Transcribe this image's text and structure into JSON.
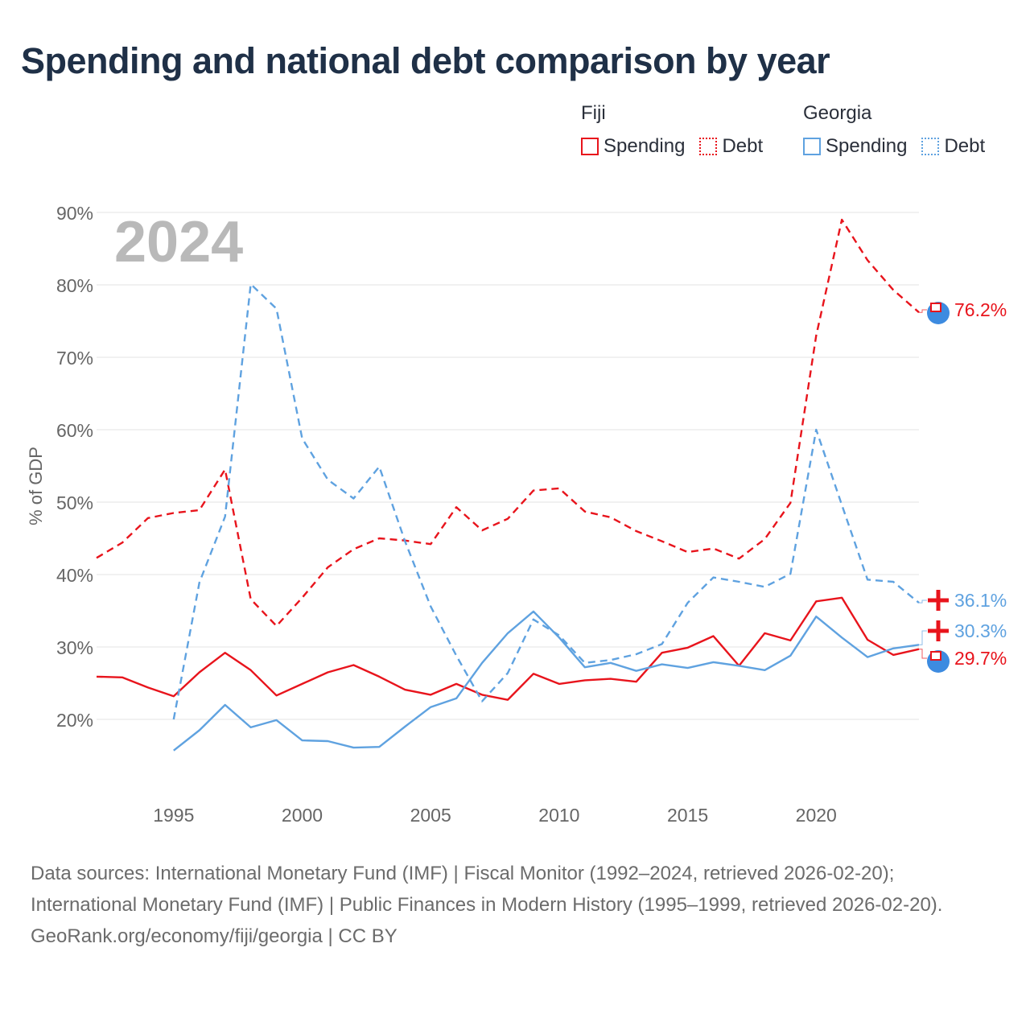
{
  "title": "Spending and national debt comparison by year",
  "legend": {
    "groups": [
      {
        "name": "Fiji",
        "items": [
          {
            "label": "Spending"
          },
          {
            "label": "Debt"
          }
        ]
      },
      {
        "name": "Georgia",
        "items": [
          {
            "label": "Spending"
          },
          {
            "label": "Debt"
          }
        ]
      }
    ]
  },
  "colors": {
    "fiji": "#e8141c",
    "georgia": "#5fa2e0",
    "year_watermark": "#b9b9b9"
  },
  "chart_data": {
    "type": "line",
    "title": "Spending and national debt comparison by year",
    "year_label": "2024",
    "ylabel": "% of GDP",
    "xlabel": "",
    "xlim": [
      1992,
      2024
    ],
    "ylim": [
      10,
      90
    ],
    "yticks": [
      20,
      30,
      40,
      50,
      60,
      70,
      80,
      90
    ],
    "ytick_labels": [
      "20%",
      "30%",
      "40%",
      "50%",
      "60%",
      "70%",
      "80%",
      "90%"
    ],
    "xticks": [
      1995,
      2000,
      2005,
      2010,
      2015,
      2020
    ],
    "xtick_labels": [
      "1995",
      "2000",
      "2005",
      "2010",
      "2015",
      "2020"
    ],
    "series": [
      {
        "name": "Fiji Spending",
        "country": "Fiji",
        "metric": "Spending",
        "style": "solid",
        "color": "#e8141c",
        "end_label": "29.7%",
        "x": [
          1992,
          1993,
          1994,
          1995,
          1996,
          1997,
          1998,
          1999,
          2000,
          2001,
          2002,
          2003,
          2004,
          2005,
          2006,
          2007,
          2008,
          2009,
          2010,
          2011,
          2012,
          2013,
          2014,
          2015,
          2016,
          2017,
          2018,
          2019,
          2020,
          2021,
          2022,
          2023,
          2024
        ],
        "values": [
          25.9,
          25.8,
          24.4,
          23.2,
          26.5,
          29.2,
          26.8,
          23.3,
          24.9,
          26.5,
          27.5,
          25.9,
          24.1,
          23.4,
          24.9,
          23.4,
          22.7,
          26.3,
          24.9,
          25.4,
          25.6,
          25.2,
          29.2,
          29.9,
          31.5,
          27.4,
          31.9,
          30.9,
          36.3,
          36.8,
          31.0,
          28.9,
          29.7
        ]
      },
      {
        "name": "Fiji Debt",
        "country": "Fiji",
        "metric": "Debt",
        "style": "dashed",
        "color": "#e8141c",
        "end_label": "76.2%",
        "x": [
          1992,
          1993,
          1994,
          1995,
          1996,
          1997,
          1998,
          1999,
          2000,
          2001,
          2002,
          2003,
          2004,
          2005,
          2006,
          2007,
          2008,
          2009,
          2010,
          2011,
          2012,
          2013,
          2014,
          2015,
          2016,
          2017,
          2018,
          2019,
          2020,
          2021,
          2022,
          2023,
          2024
        ],
        "values": [
          42.3,
          44.4,
          47.8,
          48.5,
          48.9,
          54.5,
          36.6,
          32.9,
          36.8,
          41.0,
          43.5,
          45.0,
          44.7,
          44.2,
          49.3,
          46.1,
          47.7,
          51.6,
          51.9,
          48.7,
          47.9,
          46.0,
          44.6,
          43.1,
          43.6,
          42.2,
          44.9,
          49.9,
          73.0,
          89.0,
          83.4,
          79.3,
          76.2
        ]
      },
      {
        "name": "Georgia Spending",
        "country": "Georgia",
        "metric": "Spending",
        "style": "solid",
        "color": "#5fa2e0",
        "end_label": "30.3%",
        "x": [
          1995,
          1996,
          1997,
          1998,
          1999,
          2000,
          2001,
          2002,
          2003,
          2004,
          2005,
          2006,
          2007,
          2008,
          2009,
          2010,
          2011,
          2012,
          2013,
          2014,
          2015,
          2016,
          2017,
          2018,
          2019,
          2020,
          2021,
          2022,
          2023,
          2024
        ],
        "values": [
          15.7,
          18.5,
          22.0,
          18.9,
          19.9,
          17.1,
          17.0,
          16.1,
          16.2,
          19.0,
          21.7,
          22.9,
          27.8,
          31.9,
          34.9,
          31.3,
          27.2,
          27.8,
          26.7,
          27.6,
          27.1,
          27.9,
          27.4,
          26.8,
          28.8,
          34.2,
          31.3,
          28.6,
          29.8,
          30.3
        ]
      },
      {
        "name": "Georgia Debt",
        "country": "Georgia",
        "metric": "Debt",
        "style": "dashed",
        "color": "#5fa2e0",
        "end_label": "36.1%",
        "x": [
          1995,
          1996,
          1997,
          1998,
          1999,
          2000,
          2001,
          2002,
          2003,
          2004,
          2005,
          2006,
          2007,
          2008,
          2009,
          2010,
          2011,
          2012,
          2013,
          2014,
          2015,
          2016,
          2017,
          2018,
          2019,
          2020,
          2021,
          2022,
          2023,
          2024
        ],
        "values": [
          20.0,
          38.9,
          48.0,
          80.1,
          76.7,
          58.8,
          53.1,
          50.5,
          54.9,
          44.6,
          35.6,
          28.8,
          22.5,
          26.4,
          33.8,
          31.6,
          27.8,
          28.2,
          29.0,
          30.4,
          36.1,
          39.6,
          39.0,
          38.3,
          40.1,
          60.0,
          49.6,
          39.3,
          39.0,
          36.1
        ]
      }
    ]
  },
  "footer": {
    "sources": "Data sources: International Monetary Fund (IMF) | Fiscal Monitor (1992–2024, retrieved 2026-02-20); International Monetary Fund (IMF) | Public Finances in Modern History (1995–1999, retrieved 2026-02-20).",
    "credit": "GeoRank.org/economy/fiji/georgia | CC BY"
  }
}
